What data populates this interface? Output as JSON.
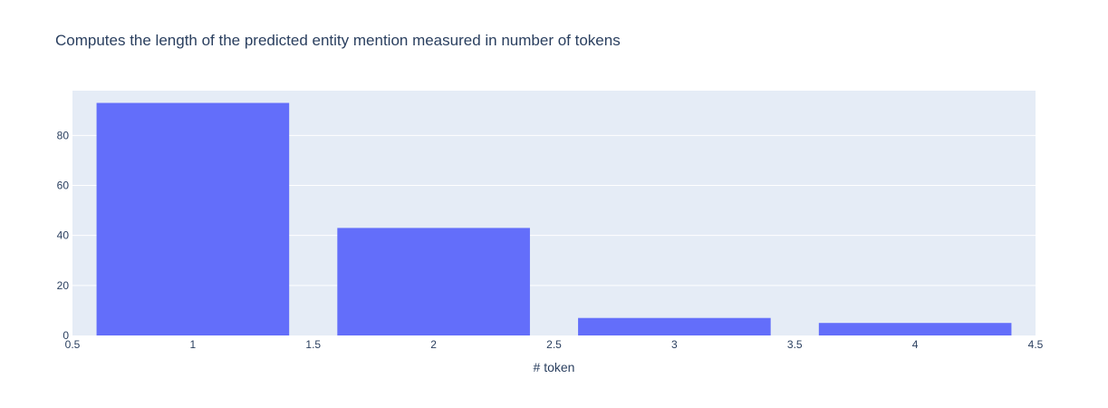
{
  "chart_data": {
    "type": "bar",
    "title": "Computes the length of the predicted entity mention measured in number of tokens",
    "xlabel": "# token",
    "ylabel": "",
    "x": [
      1,
      2,
      3,
      4
    ],
    "values": [
      93,
      43,
      7,
      5
    ],
    "xlim": [
      0.5,
      4.5
    ],
    "ylim": [
      0,
      97.9
    ],
    "x_ticks": [
      0.5,
      1,
      1.5,
      2,
      2.5,
      3,
      3.5,
      4,
      4.5
    ],
    "x_tick_labels": [
      "0.5",
      "1",
      "1.5",
      "2",
      "2.5",
      "3",
      "3.5",
      "4",
      "4.5"
    ],
    "y_ticks": [
      0,
      20,
      40,
      60,
      80
    ],
    "y_tick_labels": [
      "0",
      "20",
      "40",
      "60",
      "80"
    ],
    "bar_width": 0.8,
    "grid": true,
    "colors": {
      "bar": "#636efa",
      "plot_background": "#e5ecf6",
      "grid": "#ffffff",
      "text": "#2a3f5f"
    }
  }
}
